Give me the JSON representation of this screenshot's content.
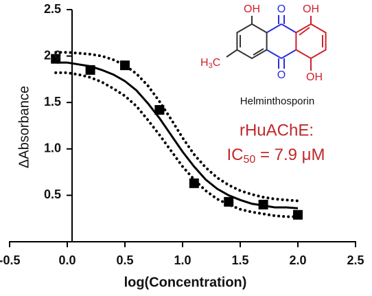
{
  "chart_data": {
    "type": "scatter",
    "xlabel": "log(Concentration)",
    "ylabel": "ΔAbsorbance",
    "xlim": [
      -0.5,
      2.5
    ],
    "ylim": [
      0,
      2.5
    ],
    "xticks": [
      -0.5,
      {
        "value": 0,
        "label": "0.0"
      },
      0.5,
      {
        "value": 1,
        "label": "1.0"
      },
      1.5,
      {
        "value": 2,
        "label": "2.0"
      },
      2.5
    ],
    "yticks": [
      0.5,
      {
        "value": 1,
        "label": "1.0"
      },
      1.5,
      {
        "value": 2,
        "label": "2.0"
      },
      2.5
    ],
    "series": [
      {
        "type": "scatter",
        "marker": "square",
        "color": "#000000",
        "x": [
          -0.1,
          0.2,
          0.5,
          0.8,
          1.1,
          1.4,
          1.7,
          2.0
        ],
        "values": [
          1.97,
          1.85,
          1.9,
          1.42,
          0.63,
          0.43,
          0.4,
          0.29
        ],
        "errors": [
          0.05,
          0.05,
          0.04,
          0.05,
          0.04,
          0.04,
          0.03,
          0.03
        ]
      },
      {
        "type": "line",
        "style": "solid",
        "color": "#000000",
        "x": [
          -0.1,
          0,
          0.1,
          0.2,
          0.3,
          0.4,
          0.5,
          0.6,
          0.7,
          0.8,
          0.9,
          1.0,
          1.1,
          1.2,
          1.3,
          1.4,
          1.5,
          1.6,
          1.7,
          1.8,
          1.9,
          2.0
        ],
        "values": [
          1.93,
          1.93,
          1.91,
          1.89,
          1.85,
          1.8,
          1.73,
          1.63,
          1.49,
          1.33,
          1.15,
          0.97,
          0.81,
          0.67,
          0.57,
          0.5,
          0.45,
          0.41,
          0.39,
          0.37,
          0.37,
          0.36
        ]
      },
      {
        "type": "line",
        "style": "dotted",
        "color": "#000000",
        "x": [
          -0.1,
          0,
          0.1,
          0.2,
          0.3,
          0.4,
          0.5,
          0.6,
          0.7,
          0.8,
          0.9,
          1.0,
          1.1,
          1.2,
          1.3,
          1.4,
          1.5,
          1.6,
          1.7,
          1.8,
          1.9,
          2.0
        ],
        "values": [
          2.04,
          2.04,
          2.03,
          2.02,
          2.0,
          1.96,
          1.9,
          1.81,
          1.68,
          1.51,
          1.32,
          1.12,
          0.94,
          0.8,
          0.69,
          0.61,
          0.55,
          0.51,
          0.48,
          0.46,
          0.45,
          0.44
        ]
      },
      {
        "type": "line",
        "style": "dotted",
        "color": "#000000",
        "x": [
          -0.1,
          0,
          0.1,
          0.2,
          0.3,
          0.4,
          0.5,
          0.6,
          0.7,
          0.8,
          0.9,
          1.0,
          1.1,
          1.2,
          1.3,
          1.4,
          1.5,
          1.6,
          1.7,
          1.8,
          1.9,
          2.0
        ],
        "values": [
          1.82,
          1.82,
          1.8,
          1.77,
          1.72,
          1.65,
          1.57,
          1.46,
          1.31,
          1.15,
          0.98,
          0.81,
          0.67,
          0.55,
          0.46,
          0.4,
          0.35,
          0.32,
          0.3,
          0.28,
          0.27,
          0.27
        ]
      }
    ],
    "annotations": {
      "compound": "Helminthosporin",
      "enzyme": "rHuAChE:",
      "ic50": {
        "prefix": "IC",
        "subscript": "50",
        "suffix": " = 7.9 μM"
      },
      "atoms": {
        "oh_top_left": "OH",
        "o_top": "O",
        "oh_top_right": "OH",
        "methyl": {
          "h": "H",
          "sub": "3",
          "c": "C"
        },
        "o_bottom": "O",
        "oh_bottom": "OH"
      }
    }
  }
}
